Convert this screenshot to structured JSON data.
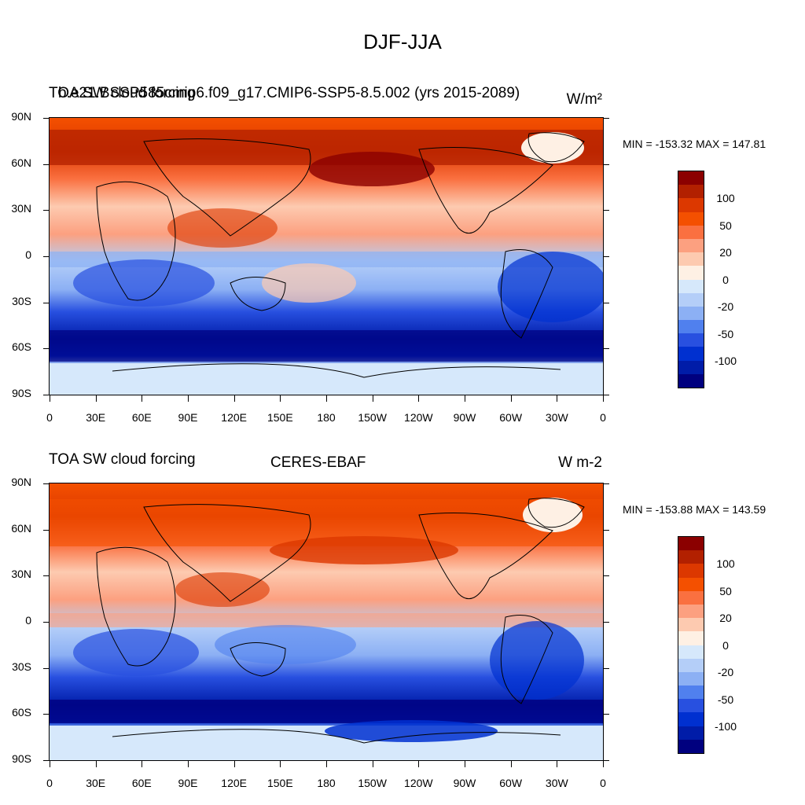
{
  "figure_title": "DJF-JJA",
  "lat_labels": [
    "90N",
    "60N",
    "30N",
    "0",
    "30S",
    "60S",
    "90S"
  ],
  "lon_labels": [
    "0",
    "30E",
    "60E",
    "90E",
    "120E",
    "150E",
    "180",
    "150W",
    "120W",
    "90W",
    "60W",
    "30W",
    "0"
  ],
  "colorbar_colors": [
    "#8b0000",
    "#b22000",
    "#dc3800",
    "#f45000",
    "#fa7040",
    "#fca080",
    "#fdcab0",
    "#fef0e4",
    "#d6e8fb",
    "#b4cef8",
    "#8cb0f4",
    "#5080ee",
    "#2850e0",
    "#0030d0",
    "#001ca8",
    "#00007f"
  ],
  "colorbar_labels": [
    "100",
    "50",
    "20",
    "0",
    "-20",
    "-50",
    "-100"
  ],
  "panel1": {
    "title_left": "TOA SW cloud forcing",
    "title_center": "b.e21.BSSP585cmip6.f09_g17.CMIP6-SSP5-8.5.002 (yrs 2015-2089)",
    "title_right": "W/m²",
    "minmax": "MIN = -153.32  MAX = 147.81"
  },
  "panel2": {
    "title_left": "TOA SW cloud forcing",
    "title_center": "CERES-EBAF",
    "title_right": "W m-2",
    "minmax": "MIN = -153.88  MAX = 143.59"
  }
}
